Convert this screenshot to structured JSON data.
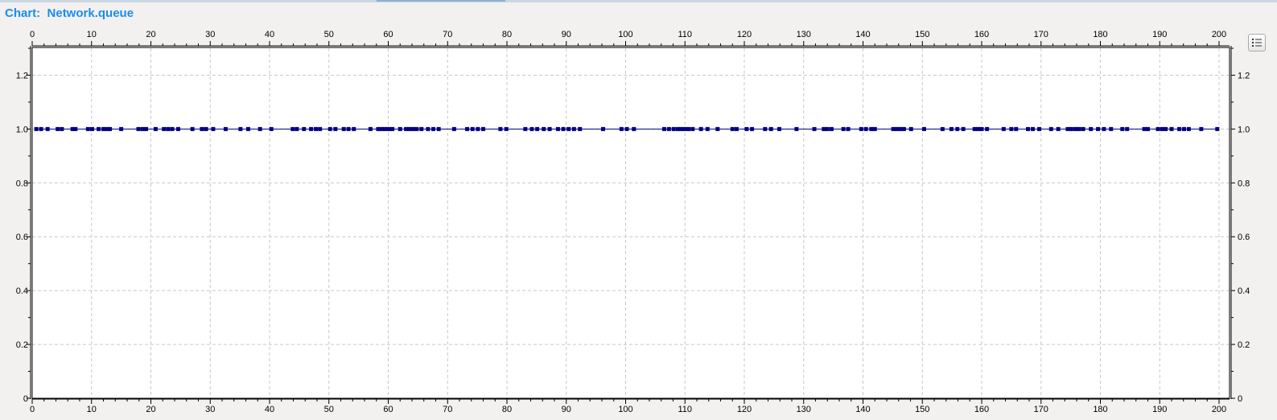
{
  "title_prefix": "Chart:",
  "title_name": "Network.queue",
  "legend_icon": "legend-list-icon",
  "colors": {
    "title": "#1a8cf0",
    "series": "#000080",
    "grid": "#c8c8c8"
  },
  "chart_data": {
    "type": "scatter",
    "title": "Network.queue",
    "xlabel": "",
    "ylabel": "",
    "xlim": [
      0,
      200
    ],
    "ylim": [
      0,
      1.3
    ],
    "x_ticks": [
      0,
      10,
      20,
      30,
      40,
      50,
      60,
      70,
      80,
      90,
      100,
      110,
      120,
      130,
      140,
      150,
      160,
      170,
      180,
      190,
      200
    ],
    "y_ticks": [
      0,
      0.2,
      0.4,
      0.6,
      0.8,
      1.0,
      1.2
    ],
    "y_tick_labels": [
      "0",
      "0.2",
      "0.4",
      "0.6",
      "0.8",
      "1.0",
      "1.2"
    ],
    "grid": true,
    "series": [
      {
        "y_value": 1.0,
        "x": [
          0.7,
          1.5,
          2.6,
          4.3,
          5.0,
          6.8,
          7.3,
          9.4,
          10.1,
          11.2,
          12.0,
          12.6,
          13.1,
          15.0,
          17.9,
          18.6,
          19.2,
          20.8,
          22.2,
          22.9,
          23.6,
          24.6,
          27.0,
          28.6,
          29.3,
          30.5,
          32.6,
          35.1,
          36.4,
          38.4,
          40.3,
          43.9,
          44.6,
          45.8,
          47.0,
          47.8,
          48.5,
          50.2,
          51.1,
          52.5,
          53.3,
          54.2,
          57.0,
          58.3,
          58.9,
          59.5,
          60.1,
          60.7,
          62.0,
          63.0,
          63.6,
          64.2,
          64.8,
          65.6,
          66.7,
          67.6,
          68.5,
          71.1,
          73.3,
          74.2,
          75.1,
          76.0,
          78.9,
          79.9,
          83.1,
          84.2,
          85.1,
          86.2,
          87.2,
          88.6,
          89.5,
          90.4,
          91.3,
          92.3,
          96.2,
          99.3,
          100.2,
          101.4,
          106.5,
          107.3,
          108.1,
          108.8,
          109.4,
          110.0,
          110.6,
          111.3,
          112.7,
          113.8,
          115.5,
          118.0,
          118.7,
          120.4,
          121.3,
          123.5,
          124.5,
          125.9,
          128.8,
          131.8,
          133.4,
          134.0,
          134.7,
          136.7,
          137.5,
          139.7,
          140.5,
          141.4,
          142.0,
          145.1,
          145.7,
          146.3,
          146.9,
          148.1,
          150.3,
          153.4,
          154.9,
          155.9,
          156.9,
          158.8,
          159.4,
          160.0,
          160.9,
          163.7,
          165.0,
          165.8,
          167.8,
          168.6,
          169.7,
          171.7,
          172.9,
          174.5,
          175.1,
          175.8,
          176.4,
          177.1,
          178.4,
          179.6,
          180.6,
          181.8,
          183.7,
          184.5,
          187.4,
          188.0,
          189.7,
          190.4,
          191.0,
          192.0,
          193.3,
          194.1,
          194.9,
          197.0,
          199.7
        ]
      }
    ]
  }
}
